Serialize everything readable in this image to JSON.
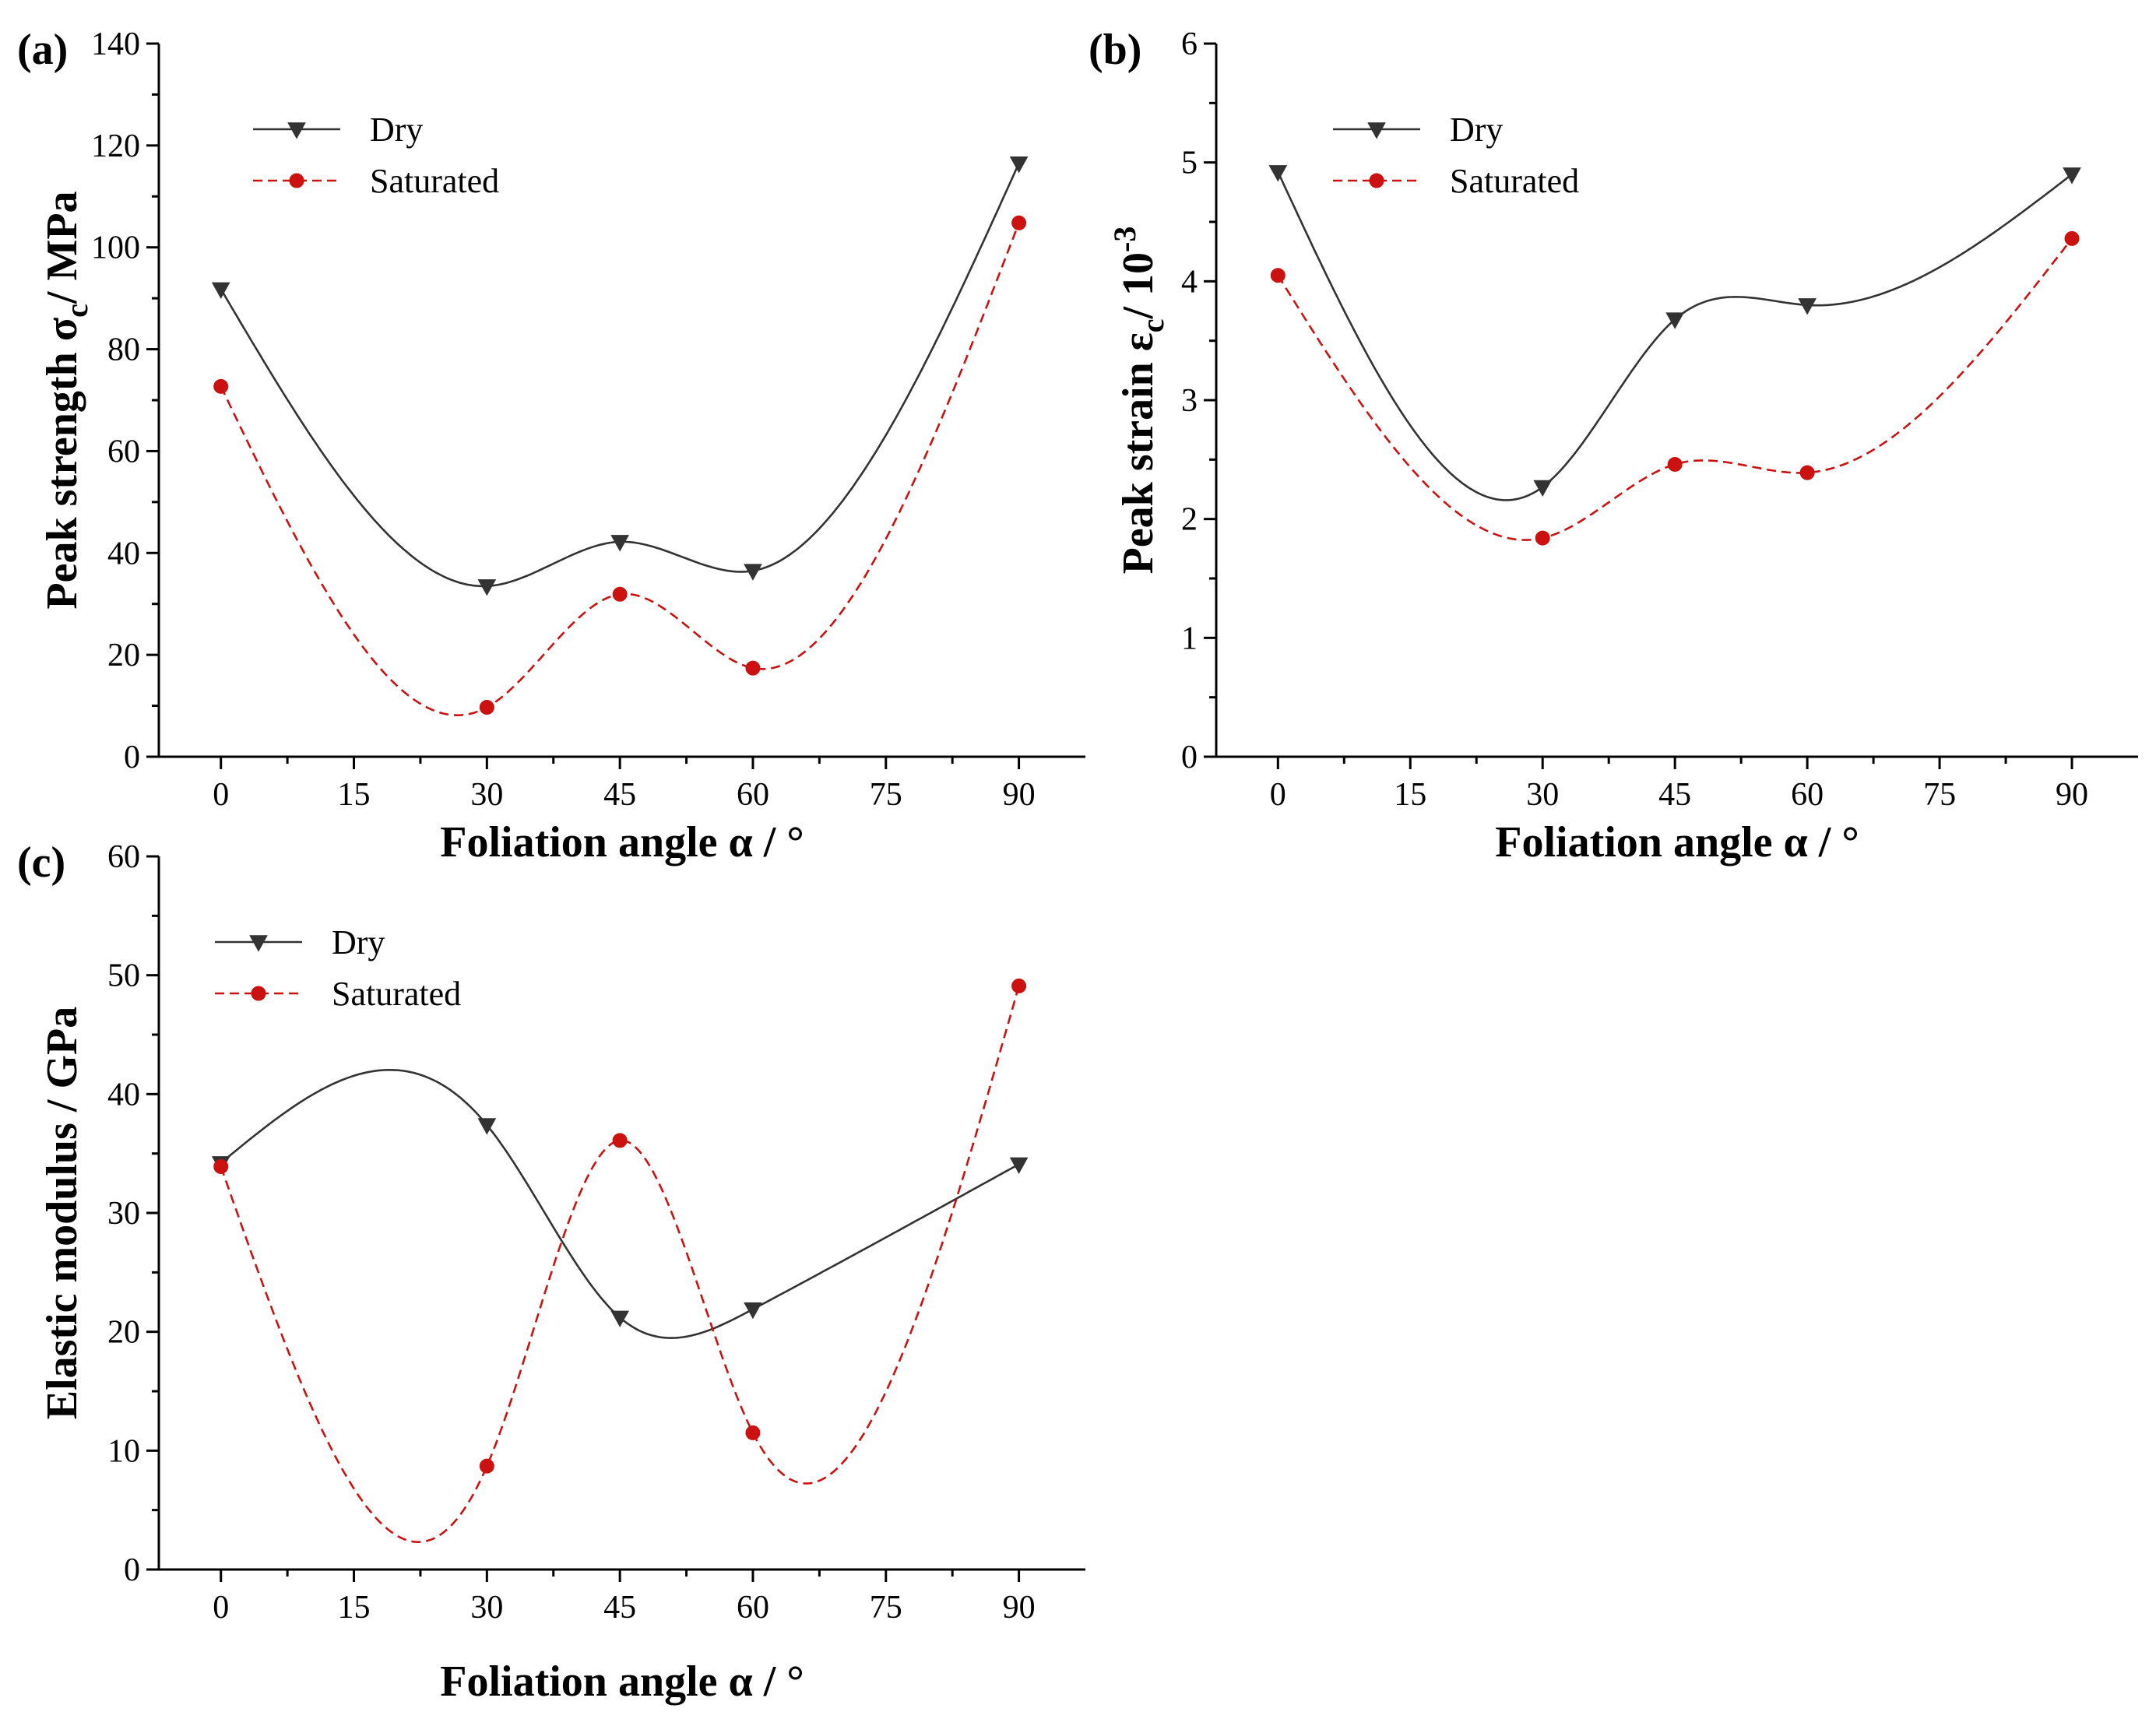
{
  "figure": {
    "background": "#ffffff"
  },
  "chart_data": [
    {
      "type": "line",
      "panel_label": "(a)",
      "title": "",
      "xlabel": "Foliation angle α / °",
      "ylabel": "Peak strength σc/ MPa",
      "ylabel_main": "Peak strength σ",
      "ylabel_sub": "c",
      "ylabel_rest": "/ MPa",
      "x": [
        0,
        30,
        45,
        60,
        90
      ],
      "xlim": [
        -7,
        97.5
      ],
      "ylim": [
        0,
        140
      ],
      "xticks": [
        0,
        15,
        30,
        45,
        60,
        75,
        90
      ],
      "yticks": [
        0,
        20,
        40,
        60,
        80,
        100,
        120,
        140
      ],
      "grid": false,
      "legend": "top-left",
      "series": [
        {
          "name": "Dry",
          "values": [
            91.8,
            33.5,
            42.2,
            36.5,
            116.5
          ],
          "color": "#333333",
          "marker": "triangle-down",
          "dash": "solid"
        },
        {
          "name": "Saturated",
          "values": [
            72.7,
            9.7,
            31.9,
            17.4,
            104.8
          ],
          "color": "#cc1111",
          "marker": "circle",
          "dash": "dashed"
        }
      ]
    },
    {
      "type": "line",
      "panel_label": "(b)",
      "title": "",
      "xlabel": "Foliation angle α / °",
      "ylabel": "Peak strain εc/ 10-3",
      "ylabel_main": "Peak strain ε",
      "ylabel_sub": "c",
      "ylabel_rest": "/ 10",
      "ylabel_sup": "-3",
      "x": [
        0,
        30,
        45,
        60,
        90
      ],
      "xlim": [
        -7,
        97.5
      ],
      "ylim": [
        0,
        6
      ],
      "xticks": [
        0,
        15,
        30,
        45,
        60,
        75,
        90
      ],
      "yticks": [
        0,
        1,
        2,
        3,
        4,
        5,
        6
      ],
      "grid": false,
      "legend": "top-left",
      "series": [
        {
          "name": "Dry",
          "values": [
            4.92,
            2.27,
            3.68,
            3.8,
            4.9
          ],
          "color": "#333333",
          "marker": "triangle-down",
          "dash": "solid"
        },
        {
          "name": "Saturated",
          "values": [
            4.05,
            1.84,
            2.46,
            2.39,
            4.36
          ],
          "color": "#cc1111",
          "marker": "circle",
          "dash": "dashed"
        }
      ]
    },
    {
      "type": "line",
      "panel_label": "(c)",
      "title": "",
      "xlabel": "Foliation angle α / °",
      "ylabel": "Elastic modulus / GPa",
      "ylabel_main": "Elastic modulus / GPa",
      "x": [
        0,
        30,
        45,
        60,
        90
      ],
      "xlim": [
        -7,
        97.5
      ],
      "ylim": [
        0,
        60
      ],
      "xticks": [
        0,
        15,
        30,
        45,
        60,
        75,
        90
      ],
      "yticks": [
        0,
        10,
        20,
        30,
        40,
        50,
        60
      ],
      "grid": false,
      "legend": "top-left",
      "series": [
        {
          "name": "Dry",
          "values": [
            34.2,
            37.4,
            21.2,
            21.9,
            34.1
          ],
          "color": "#333333",
          "marker": "triangle-down",
          "dash": "solid"
        },
        {
          "name": "Saturated",
          "values": [
            33.9,
            8.7,
            36.1,
            11.5,
            49.1
          ],
          "color": "#cc1111",
          "marker": "circle",
          "dash": "dashed"
        }
      ]
    }
  ]
}
